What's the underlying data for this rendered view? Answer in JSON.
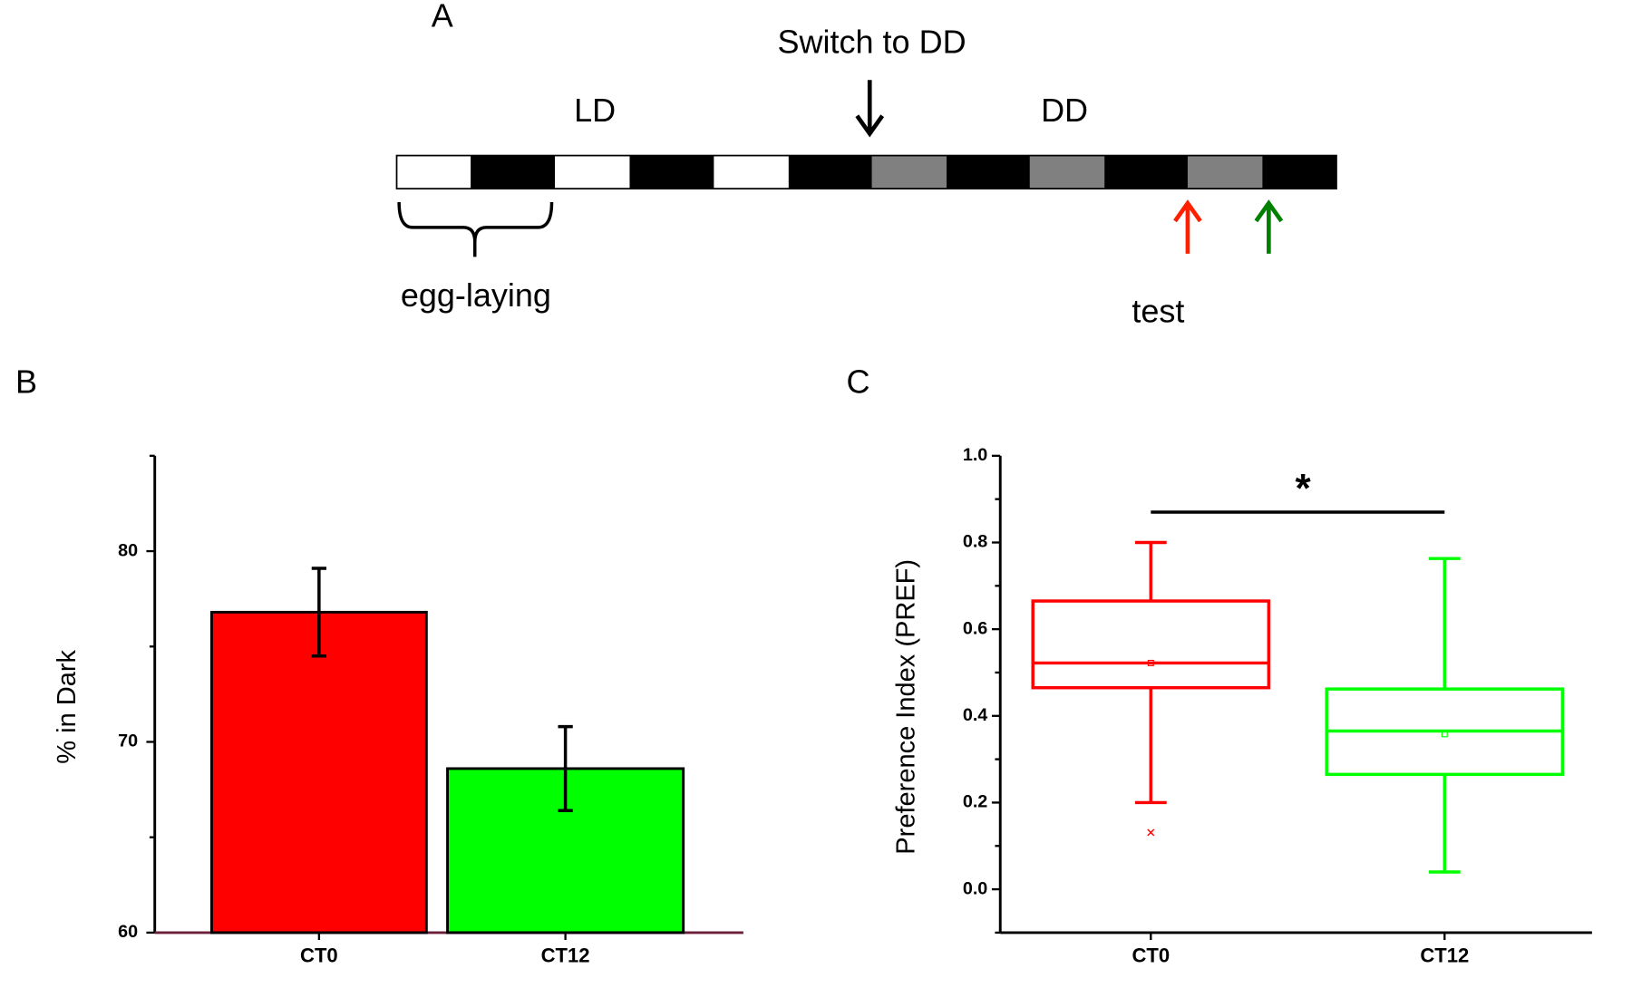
{
  "diagram": {
    "panel": "A",
    "switch_label": "Switch to DD",
    "ld_label": "LD",
    "dd_label": "DD",
    "egg_label": "egg-laying",
    "test_label": "test"
  },
  "chart_data": [
    {
      "type": "bar",
      "panel": "B",
      "ylabel": "% in Dark",
      "categories": [
        "CT0",
        "CT12"
      ],
      "values": [
        76.8,
        68.6
      ],
      "errors": [
        2.3,
        2.2
      ],
      "colors": [
        "#ff0000",
        "#00ff00"
      ],
      "ylim": [
        60,
        85
      ],
      "yticks": [
        60,
        70,
        80
      ],
      "yticks_minor": [
        65,
        75,
        85
      ]
    },
    {
      "type": "box",
      "panel": "C",
      "ylabel": "Preference Index (PREF)",
      "categories": [
        "CT0",
        "CT12"
      ],
      "boxes": [
        {
          "whisker_low": 0.2,
          "q1": 0.465,
          "median": 0.522,
          "q3": 0.665,
          "whisker_high": 0.8,
          "mean": 0.522,
          "outliers": [
            0.131
          ],
          "color": "#ff0000"
        },
        {
          "whisker_low": 0.04,
          "q1": 0.265,
          "median": 0.365,
          "q3": 0.462,
          "whisker_high": 0.763,
          "mean": 0.358,
          "color": "#00ff00"
        }
      ],
      "ylim": [
        -0.1,
        1.0
      ],
      "yticks": [
        {
          "value": 0,
          "label": "0.0"
        },
        0.2,
        0.4,
        0.6,
        0.8,
        {
          "value": 1,
          "label": "1.0"
        }
      ],
      "yticks_minor": [
        -0.1,
        0.1,
        0.3,
        0.5,
        0.7,
        0.9
      ],
      "significance": {
        "label": "*",
        "from": 0,
        "to": 1,
        "y": 0.87
      }
    }
  ]
}
